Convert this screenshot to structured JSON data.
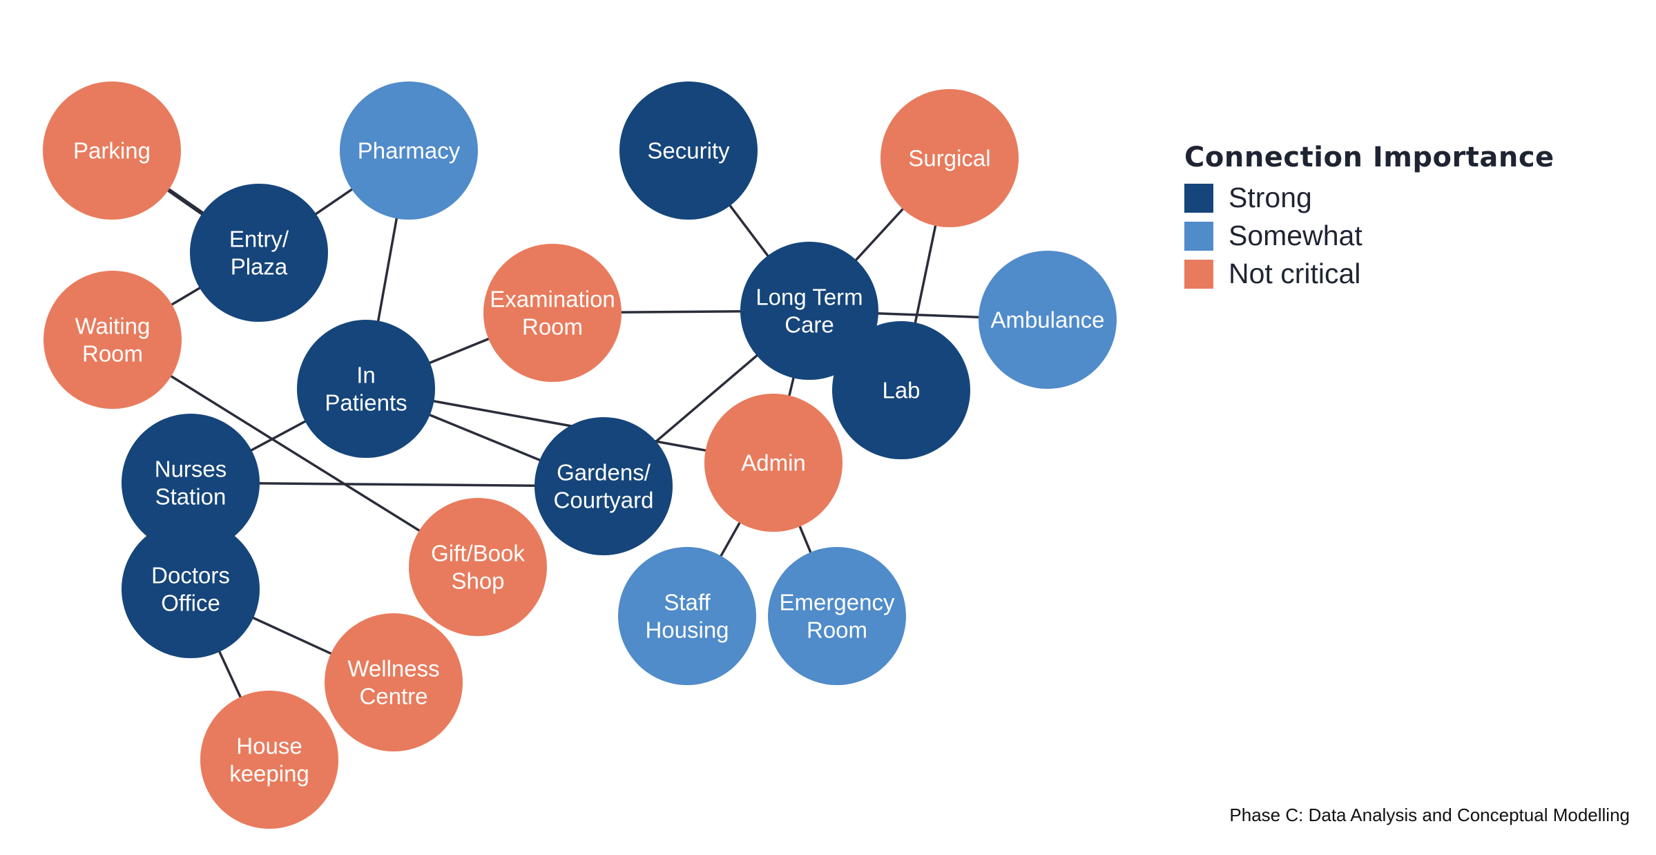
{
  "colors": {
    "strong": "#15457a",
    "somewhat": "#508bca",
    "not_critical": "#e87b5d",
    "edge": "#2a2d3a"
  },
  "nodes": [
    {
      "id": "parking",
      "lines": [
        "Parking"
      ],
      "importance": "not_critical"
    },
    {
      "id": "entry_plaza",
      "lines": [
        "Entry/",
        "Plaza"
      ],
      "importance": "strong"
    },
    {
      "id": "pharmacy",
      "lines": [
        "Pharmacy"
      ],
      "importance": "somewhat"
    },
    {
      "id": "waiting_room",
      "lines": [
        "Waiting",
        "Room"
      ],
      "importance": "not_critical"
    },
    {
      "id": "security",
      "lines": [
        "Security"
      ],
      "importance": "strong"
    },
    {
      "id": "surgical",
      "lines": [
        "Surgical"
      ],
      "importance": "not_critical"
    },
    {
      "id": "examination_room",
      "lines": [
        "Examination",
        "Room"
      ],
      "importance": "not_critical"
    },
    {
      "id": "long_term_care",
      "lines": [
        "Long Term",
        "Care"
      ],
      "importance": "strong"
    },
    {
      "id": "ambulance",
      "lines": [
        "Ambulance"
      ],
      "importance": "somewhat"
    },
    {
      "id": "in_patients",
      "lines": [
        "In",
        "Patients"
      ],
      "importance": "strong"
    },
    {
      "id": "lab",
      "lines": [
        "Lab"
      ],
      "importance": "strong"
    },
    {
      "id": "nurses_station",
      "lines": [
        "Nurses",
        "Station"
      ],
      "importance": "strong"
    },
    {
      "id": "gardens_courtyard",
      "lines": [
        "Gardens/",
        "Courtyard"
      ],
      "importance": "strong"
    },
    {
      "id": "admin",
      "lines": [
        "Admin"
      ],
      "importance": "not_critical"
    },
    {
      "id": "doctors_office",
      "lines": [
        "Doctors",
        "Office"
      ],
      "importance": "strong"
    },
    {
      "id": "gift_book_shop",
      "lines": [
        "Gift/Book",
        "Shop"
      ],
      "importance": "not_critical"
    },
    {
      "id": "staff_housing",
      "lines": [
        "Staff",
        "Housing"
      ],
      "importance": "somewhat"
    },
    {
      "id": "emergency_room",
      "lines": [
        "Emergency",
        "Room"
      ],
      "importance": "somewhat"
    },
    {
      "id": "wellness_centre",
      "lines": [
        "Wellness",
        "Centre"
      ],
      "importance": "not_critical"
    },
    {
      "id": "housekeeping",
      "lines": [
        "House",
        "keeping"
      ],
      "importance": "not_critical"
    }
  ],
  "edges": [
    [
      "parking",
      "entry_plaza"
    ],
    [
      "pharmacy",
      "entry_plaza"
    ],
    [
      "waiting_room",
      "entry_plaza"
    ],
    [
      "pharmacy",
      "in_patients"
    ],
    [
      "waiting_room",
      "gift_book_shop"
    ],
    [
      "in_patients",
      "examination_room"
    ],
    [
      "examination_room",
      "long_term_care"
    ],
    [
      "in_patients",
      "nurses_station"
    ],
    [
      "in_patients",
      "gardens_courtyard"
    ],
    [
      "in_patients",
      "admin"
    ],
    [
      "nurses_station",
      "gardens_courtyard"
    ],
    [
      "security",
      "long_term_care"
    ],
    [
      "surgical",
      "long_term_care"
    ],
    [
      "surgical",
      "lab"
    ],
    [
      "long_term_care",
      "ambulance"
    ],
    [
      "long_term_care",
      "gardens_courtyard"
    ],
    [
      "long_term_care",
      "admin"
    ],
    [
      "admin",
      "staff_housing"
    ],
    [
      "admin",
      "emergency_room"
    ],
    [
      "doctors_office",
      "wellness_centre"
    ],
    [
      "doctors_office",
      "housekeeping"
    ]
  ],
  "legend": {
    "title": "Connection Importance",
    "items": [
      {
        "key": "strong",
        "label": "Strong"
      },
      {
        "key": "somewhat",
        "label": "Somewhat"
      },
      {
        "key": "not_critical",
        "label": "Not critical"
      }
    ]
  },
  "footer": "Phase C: Data Analysis and Conceptual Modelling"
}
